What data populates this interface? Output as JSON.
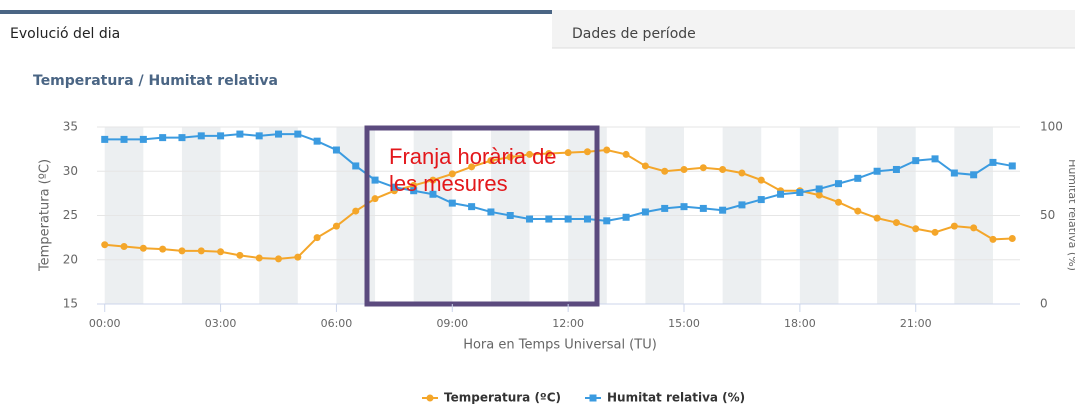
{
  "tabs": [
    "Evolució del dia",
    "Dades de període"
  ],
  "chart_data": {
    "type": "line",
    "title": "Temperatura / Humitat relativa",
    "xlabel": "Hora en Temps Universal (TU)",
    "ylabel": "Temperatura (ºC)",
    "y2label": "Humitat relativa (%)",
    "annotation": "Franja horària de les mesures",
    "x": [
      0,
      0.5,
      1,
      1.5,
      2,
      2.5,
      3,
      3.5,
      4,
      4.5,
      5,
      5.5,
      6,
      6.5,
      7,
      7.5,
      8,
      8.5,
      9,
      9.5,
      10,
      10.5,
      11,
      11.5,
      12,
      12.5,
      13,
      13.5,
      14,
      14.5,
      15,
      15.5,
      16,
      16.5,
      17,
      17.5,
      18,
      18.5,
      19,
      19.5,
      20,
      20.5,
      21,
      21.5,
      22,
      22.5,
      23,
      23.5
    ],
    "xlim": [
      -0.2,
      23.7
    ],
    "xticks": [
      {
        "value": 0,
        "label": "00:00"
      },
      {
        "value": 3,
        "label": "03:00"
      },
      {
        "value": 6,
        "label": "06:00"
      },
      {
        "value": 9,
        "label": "09:00"
      },
      {
        "value": 12,
        "label": "12:00"
      },
      {
        "value": 15,
        "label": "15:00"
      },
      {
        "value": 18,
        "label": "18:00"
      },
      {
        "value": 21,
        "label": "21:00"
      }
    ],
    "ylim": [
      15,
      35
    ],
    "yticks": [
      15,
      20,
      25,
      30,
      35
    ],
    "y2lim": [
      0,
      100
    ],
    "y2ticks": [
      0,
      50,
      100
    ],
    "grid": true,
    "series": [
      {
        "name": "Temperatura (ºC)",
        "color": "#f4a62a",
        "marker": "circle",
        "values": [
          21.7,
          21.5,
          21.3,
          21.2,
          21.0,
          21.0,
          20.9,
          20.5,
          20.2,
          20.1,
          20.3,
          22.5,
          23.8,
          25.5,
          26.9,
          27.8,
          28.4,
          29.0,
          29.7,
          30.5,
          31.2,
          31.6,
          31.9,
          32.0,
          32.1,
          32.2,
          32.4,
          31.9,
          30.6,
          30.0,
          30.2,
          30.4,
          30.2,
          29.8,
          29.0,
          27.8,
          27.8,
          27.3,
          26.5,
          25.5,
          24.7,
          24.2,
          23.5,
          23.1,
          23.8,
          23.6,
          22.3,
          22.4
        ]
      },
      {
        "name": "Humitat relativa (%)",
        "color": "#3b9be0",
        "marker": "square",
        "axis": "y2",
        "values": [
          93,
          93,
          93,
          94,
          94,
          95,
          95,
          96,
          95,
          96,
          96,
          92,
          87,
          78,
          70,
          66,
          64,
          62,
          57,
          55,
          52,
          50,
          48,
          48,
          48,
          48,
          47,
          49,
          52,
          54,
          55,
          54,
          53,
          56,
          59,
          62,
          63,
          65,
          68,
          71,
          75,
          76,
          81,
          82,
          74,
          73,
          80,
          78
        ]
      }
    ]
  }
}
